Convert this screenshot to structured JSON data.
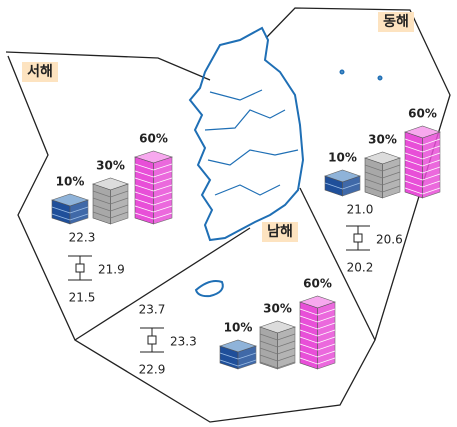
{
  "regions": [
    {
      "name": "서해",
      "bars": [
        "10%",
        "30%",
        "60%"
      ],
      "stats": [
        "22.3",
        "21.9",
        "21.5"
      ]
    },
    {
      "name": "동해",
      "bars": [
        "10%",
        "30%",
        "60%"
      ],
      "stats": [
        "21.0",
        "20.6",
        "20.2"
      ]
    },
    {
      "name": "남해",
      "bars": [
        "10%",
        "30%",
        "60%"
      ],
      "stats": [
        "23.7",
        "23.3",
        "22.9"
      ]
    }
  ]
}
